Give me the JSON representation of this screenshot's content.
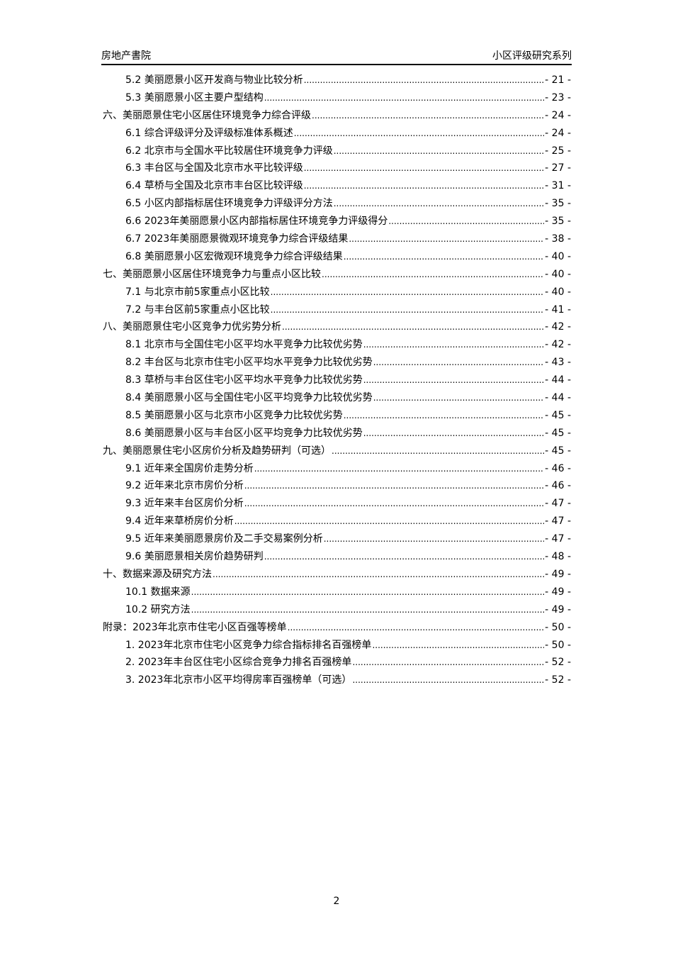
{
  "header": {
    "left": "房地产書院",
    "right": "小区评级研究系列"
  },
  "toc": [
    {
      "level": 2,
      "title": "5.2 美丽愿景小区开发商与物业比较分析",
      "page": "- 21 -"
    },
    {
      "level": 2,
      "title": "5.3 美丽愿景小区主要户型结构",
      "page": "- 23 -"
    },
    {
      "level": 1,
      "title": "六、美丽愿景住宅小区居住环境竞争力综合评级",
      "page": "- 24 -"
    },
    {
      "level": 2,
      "title": "6.1 综合评级评分及评级标准体系概述",
      "page": "- 24 -"
    },
    {
      "level": 2,
      "title": "6.2 北京市与全国水平比较居住环境竞争力评级",
      "page": "- 25 -"
    },
    {
      "level": 2,
      "title": "6.3 丰台区与全国及北京市水平比较评级",
      "page": "- 27 -"
    },
    {
      "level": 2,
      "title": "6.4 草桥与全国及北京市丰台区比较评级",
      "page": "- 31 -"
    },
    {
      "level": 2,
      "title": "6.5 小区内部指标居住环境竞争力评级评分方法",
      "page": "- 35 -"
    },
    {
      "level": 2,
      "title": "6.6 2023年美丽愿景小区内部指标居住环境竞争力评级得分",
      "page": "- 35 -"
    },
    {
      "level": 2,
      "title": "6.7 2023年美丽愿景微观环境竞争力综合评级结果",
      "page": "- 38 -"
    },
    {
      "level": 2,
      "title": "6.8 美丽愿景小区宏微观环境竞争力综合评级结果",
      "page": "- 40 -"
    },
    {
      "level": 1,
      "title": "七、美丽愿景小区居住环境竞争力与重点小区比较",
      "page": "- 40 -"
    },
    {
      "level": 2,
      "title": "7.1 与北京市前5家重点小区比较",
      "page": "- 40 -"
    },
    {
      "level": 2,
      "title": "7.2 与丰台区前5家重点小区比较",
      "page": "- 41 -"
    },
    {
      "level": 1,
      "title": "八、美丽愿景住宅小区竞争力优劣势分析",
      "page": "- 42 -"
    },
    {
      "level": 2,
      "title": "8.1 北京市与全国住宅小区平均水平竞争力比较优劣势",
      "page": "- 42 -"
    },
    {
      "level": 2,
      "title": "8.2 丰台区与北京市住宅小区平均水平竞争力比较优劣势",
      "page": "- 43 -"
    },
    {
      "level": 2,
      "title": "8.3 草桥与丰台区住宅小区平均水平竞争力比较优劣势",
      "page": "- 44 -"
    },
    {
      "level": 2,
      "title": "8.4 美丽愿景小区与全国住宅小区平均竞争力比较优劣势",
      "page": "- 44 -"
    },
    {
      "level": 2,
      "title": "8.5 美丽愿景小区与北京市小区竞争力比较优劣势",
      "page": "- 45 -"
    },
    {
      "level": 2,
      "title": "8.6 美丽愿景小区与丰台区小区平均竞争力比较优劣势",
      "page": "- 45 -"
    },
    {
      "level": 1,
      "title": "九、美丽愿景住宅小区房价分析及趋势研判（可选）",
      "page": "- 45 -"
    },
    {
      "level": 2,
      "title": "9.1 近年来全国房价走势分析",
      "page": "- 46 -"
    },
    {
      "level": 2,
      "title": "9.2 近年来北京市房价分析",
      "page": "- 46 -"
    },
    {
      "level": 2,
      "title": "9.3 近年来丰台区房价分析",
      "page": "- 47 -"
    },
    {
      "level": 2,
      "title": "9.4 近年来草桥房价分析",
      "page": "- 47 -"
    },
    {
      "level": 2,
      "title": "9.5 近年来美丽愿景房价及二手交易案例分析",
      "page": "- 47 -"
    },
    {
      "level": 2,
      "title": "9.6 美丽愿景相关房价趋势研判",
      "page": "- 48 -"
    },
    {
      "level": 1,
      "title": "十、数据来源及研究方法",
      "page": "- 49 -"
    },
    {
      "level": 2,
      "title": "10.1 数据来源",
      "page": "- 49 -"
    },
    {
      "level": 2,
      "title": "10.2 研究方法",
      "page": "- 49 -"
    },
    {
      "level": 1,
      "title": "附录：2023年北京市住宅小区百强等榜单",
      "page": "- 50 -"
    },
    {
      "level": 2,
      "title": "1. 2023年北京市住宅小区竞争力综合指标排名百强榜单",
      "page": "- 50 -"
    },
    {
      "level": 2,
      "title": "2. 2023年丰台区住宅小区综合竞争力排名百强榜单",
      "page": "- 52 -"
    },
    {
      "level": 2,
      "title": "3. 2023年北京市小区平均得房率百强榜单（可选）",
      "page": "- 52 -"
    }
  ],
  "footer": {
    "page_number": "2"
  }
}
